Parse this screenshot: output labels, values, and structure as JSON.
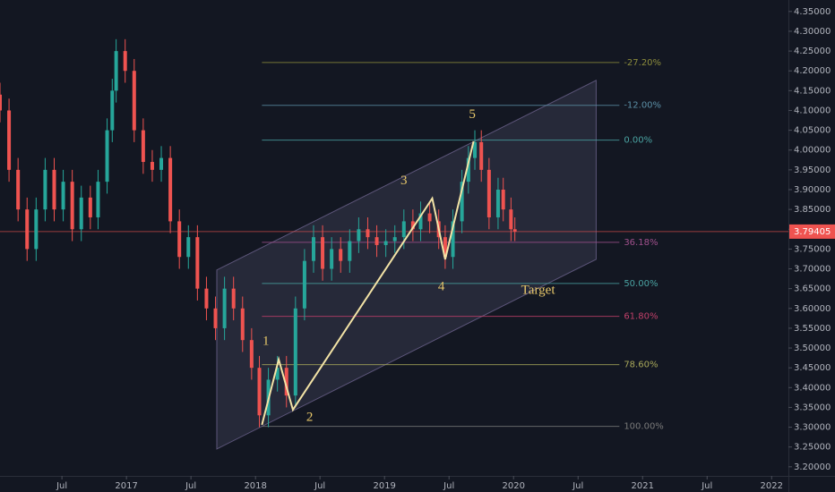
{
  "chart_data": {
    "type": "candlestick",
    "x": [
      2016.02,
      2016.09,
      2016.16,
      2016.23,
      2016.3,
      2016.37,
      2016.44,
      2016.51,
      2016.58,
      2016.65,
      2016.72,
      2016.78,
      2016.85,
      2016.89,
      2016.92,
      2016.99,
      2017.06,
      2017.13,
      2017.2,
      2017.27,
      2017.34,
      2017.41,
      2017.48,
      2017.55,
      2017.62,
      2017.69,
      2017.76,
      2017.83,
      2017.9,
      2017.97,
      2018.03,
      2018.1,
      2018.17,
      2018.24,
      2018.31,
      2018.38,
      2018.45,
      2018.52,
      2018.59,
      2018.66,
      2018.73,
      2018.8,
      2018.87,
      2018.94,
      2019.01,
      2019.08,
      2019.15,
      2019.22,
      2019.28,
      2019.35,
      2019.42,
      2019.47,
      2019.53,
      2019.6,
      2019.65,
      2019.7,
      2019.75,
      2019.81,
      2019.88,
      2019.92,
      2019.98,
      2020.01
    ],
    "open": [
      4.14,
      4.1,
      3.95,
      3.85,
      3.75,
      3.85,
      3.95,
      3.85,
      3.92,
      3.8,
      3.88,
      3.83,
      3.92,
      4.05,
      4.15,
      4.25,
      4.2,
      4.05,
      3.97,
      3.95,
      3.98,
      3.82,
      3.73,
      3.78,
      3.65,
      3.6,
      3.55,
      3.65,
      3.6,
      3.52,
      3.45,
      3.33,
      3.42,
      3.45,
      3.38,
      3.6,
      3.72,
      3.78,
      3.7,
      3.75,
      3.72,
      3.77,
      3.8,
      3.78,
      3.76,
      3.77,
      3.78,
      3.82,
      3.8,
      3.84,
      3.82,
      3.78,
      3.73,
      3.82,
      3.92,
      3.98,
      4.02,
      3.95,
      3.83,
      3.9,
      3.85,
      3.8
    ],
    "high": [
      4.17,
      4.13,
      3.98,
      3.88,
      3.88,
      3.98,
      3.98,
      3.95,
      3.95,
      3.91,
      3.91,
      3.95,
      4.08,
      4.18,
      4.28,
      4.28,
      4.23,
      4.08,
      4.0,
      4.01,
      4.01,
      3.85,
      3.81,
      3.81,
      3.68,
      3.63,
      3.68,
      3.68,
      3.63,
      3.55,
      3.48,
      3.45,
      3.48,
      3.48,
      3.63,
      3.75,
      3.81,
      3.81,
      3.78,
      3.78,
      3.8,
      3.83,
      3.83,
      3.81,
      3.8,
      3.81,
      3.85,
      3.85,
      3.87,
      3.87,
      3.85,
      3.81,
      3.85,
      3.95,
      4.01,
      4.05,
      4.05,
      3.98,
      3.93,
      3.93,
      3.88,
      3.83
    ],
    "low": [
      4.07,
      3.92,
      3.82,
      3.72,
      3.72,
      3.82,
      3.82,
      3.82,
      3.77,
      3.77,
      3.8,
      3.8,
      3.89,
      4.02,
      4.12,
      4.17,
      4.02,
      3.94,
      3.92,
      3.92,
      3.79,
      3.7,
      3.7,
      3.62,
      3.57,
      3.52,
      3.52,
      3.57,
      3.49,
      3.42,
      3.3,
      3.3,
      3.39,
      3.35,
      3.35,
      3.57,
      3.69,
      3.67,
      3.67,
      3.69,
      3.69,
      3.74,
      3.75,
      3.73,
      3.73,
      3.74,
      3.75,
      3.77,
      3.77,
      3.79,
      3.75,
      3.7,
      3.7,
      3.79,
      3.89,
      3.95,
      3.92,
      3.8,
      3.8,
      3.82,
      3.77,
      3.77
    ],
    "close": [
      4.1,
      3.95,
      3.85,
      3.75,
      3.85,
      3.95,
      3.85,
      3.92,
      3.8,
      3.88,
      3.83,
      3.92,
      4.05,
      4.15,
      4.25,
      4.2,
      4.05,
      3.97,
      3.95,
      3.98,
      3.82,
      3.73,
      3.78,
      3.65,
      3.6,
      3.55,
      3.65,
      3.6,
      3.52,
      3.45,
      3.33,
      3.42,
      3.45,
      3.38,
      3.6,
      3.72,
      3.78,
      3.7,
      3.75,
      3.72,
      3.77,
      3.8,
      3.78,
      3.76,
      3.77,
      3.78,
      3.82,
      3.8,
      3.84,
      3.82,
      3.78,
      3.73,
      3.82,
      3.92,
      3.98,
      4.02,
      3.95,
      3.83,
      3.9,
      3.85,
      3.8,
      3.79405
    ],
    "up_color": "#26a69a",
    "down_color": "#ef5350",
    "xlim": [
      2016.02,
      2022.13
    ],
    "xticks": [
      {
        "value": 2016.5,
        "label": "Jul"
      },
      2017,
      {
        "value": 2017.5,
        "label": "Jul"
      },
      2018,
      {
        "value": 2018.5,
        "label": "Jul"
      },
      2019,
      {
        "value": 2019.5,
        "label": "Jul"
      },
      2020,
      {
        "value": 2020.5,
        "label": "Jul"
      },
      2021,
      {
        "value": 2021.5,
        "label": "Jul"
      },
      2022
    ],
    "ylim": [
      3.177,
      4.379
    ],
    "yticks": [
      {
        "value": 3.2,
        "label": "3.20000"
      },
      {
        "value": 3.25,
        "label": "3.25000"
      },
      {
        "value": 3.3,
        "label": "3.30000"
      },
      {
        "value": 3.35,
        "label": "3.35000"
      },
      {
        "value": 3.4,
        "label": "3.40000"
      },
      {
        "value": 3.45,
        "label": "3.45000"
      },
      {
        "value": 3.5,
        "label": "3.50000"
      },
      {
        "value": 3.55,
        "label": "3.55000"
      },
      {
        "value": 3.6,
        "label": "3.60000"
      },
      {
        "value": 3.65,
        "label": "3.65000"
      },
      {
        "value": 3.7,
        "label": "3.70000"
      },
      {
        "value": 3.75,
        "label": "3.75000"
      },
      {
        "value": 3.8,
        "label": "3.80000"
      },
      {
        "value": 3.85,
        "label": "3.85000"
      },
      {
        "value": 3.9,
        "label": "3.90000"
      },
      {
        "value": 3.95,
        "label": "3.95000"
      },
      {
        "value": 4.0,
        "label": "4.00000"
      },
      {
        "value": 4.05,
        "label": "4.05000"
      },
      {
        "value": 4.1,
        "label": "4.10000"
      },
      {
        "value": 4.15,
        "label": "4.15000"
      },
      {
        "value": 4.2,
        "label": "4.20000"
      },
      {
        "value": 4.25,
        "label": "4.25000"
      },
      {
        "value": 4.3,
        "label": "4.30000"
      },
      {
        "value": 4.35,
        "label": "4.35000"
      }
    ],
    "price_line_color": "#ef5350",
    "fib_x": [
      2018.05,
      2020.82
    ],
    "fib_levels": [
      {
        "label": "-27.20%",
        "value": 4.221,
        "color": "#8c8c3c"
      },
      {
        "label": "-12.00%",
        "value": 4.113,
        "color": "#5b8fa6"
      },
      {
        "label": "0.00%",
        "value": 4.025,
        "color": "#4aa3a2"
      },
      {
        "label": "36.18%",
        "value": 3.767,
        "color": "#a0508c"
      },
      {
        "label": "50.00%",
        "value": 3.663,
        "color": "#4aa3a2"
      },
      {
        "label": "61.80%",
        "value": 3.58,
        "color": "#c2406a"
      },
      {
        "label": "78.60%",
        "value": 3.458,
        "color": "#a8a85a"
      },
      {
        "label": "100.00%",
        "value": 3.302,
        "color": "#7a7a7a"
      }
    ],
    "channel": {
      "x": [
        2017.7,
        2020.64,
        2020.64,
        2017.7
      ],
      "y": [
        3.697,
        4.176,
        3.724,
        3.245
      ]
    },
    "wave": {
      "x": [
        2018.05,
        2018.18,
        2018.29,
        2019.37,
        2019.47,
        2019.69
      ],
      "y": [
        3.306,
        3.471,
        3.344,
        3.878,
        3.724,
        4.022
      ],
      "color": "#f3e3a6"
    },
    "annotations": [
      {
        "text": "1",
        "x": 2018.08,
        "y": 3.516
      },
      {
        "text": "2",
        "x": 2018.42,
        "y": 3.324
      },
      {
        "text": "3",
        "x": 2019.15,
        "y": 3.921
      },
      {
        "text": "4",
        "x": 2019.44,
        "y": 3.654
      },
      {
        "text": "5",
        "x": 2019.68,
        "y": 4.088
      },
      {
        "text": "Target",
        "x": 2020.19,
        "y": 3.645
      }
    ],
    "annotation_color": "#e8c86a"
  }
}
